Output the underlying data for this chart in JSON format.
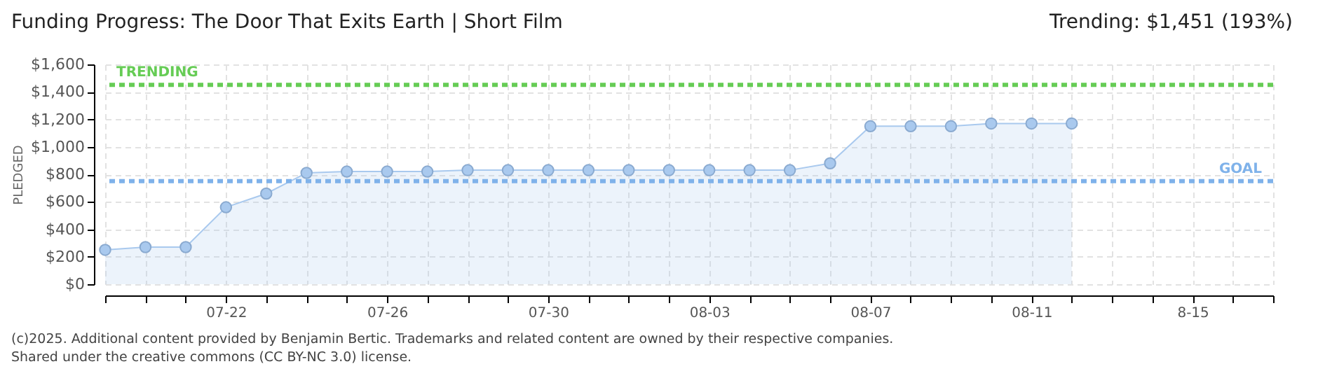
{
  "chart_data": {
    "type": "area",
    "title": "Funding Progress: The Door That Exits Earth | Short Film",
    "subtitle": "Trending: $1,451 (193%)",
    "ylabel": "PLEDGED",
    "x": [
      "--07-19",
      "--07-20",
      "--07-21",
      "--07-22",
      "--07-23",
      "--07-24",
      "--07-25",
      "--07-26",
      "--07-27",
      "--07-28",
      "--07-29",
      "--07-30",
      "--07-31",
      "--08-01",
      "--08-02",
      "--08-03",
      "--08-04",
      "--08-05",
      "--08-06",
      "--08-07",
      "--08-08",
      "--08-09",
      "--08-10",
      "--08-11",
      "--08-12"
    ],
    "series": [
      {
        "color": "#a9c9ee",
        "values": [
          250,
          270,
          270,
          560,
          660,
          810,
          820,
          820,
          820,
          830,
          830,
          830,
          830,
          830,
          830,
          830,
          830,
          830,
          880,
          1150,
          1150,
          1150,
          1170,
          1170,
          1170
        ]
      }
    ],
    "xlim": [
      "--07-19",
      "--08-17"
    ],
    "xticks": [
      {
        "value": "--07-19",
        "label": null
      },
      {
        "value": "--07-20",
        "label": null
      },
      {
        "value": "--07-21",
        "label": null
      },
      {
        "value": "--07-22",
        "label": "07-22"
      },
      {
        "value": "--07-23",
        "label": null
      },
      {
        "value": "--07-24",
        "label": null
      },
      {
        "value": "--07-25",
        "label": null
      },
      {
        "value": "--07-26",
        "label": "07-26"
      },
      {
        "value": "--07-27",
        "label": null
      },
      {
        "value": "--07-28",
        "label": null
      },
      {
        "value": "--07-29",
        "label": null
      },
      {
        "value": "--07-30",
        "label": "07-30"
      },
      {
        "value": "--07-31",
        "label": null
      },
      {
        "value": "--08-01",
        "label": null
      },
      {
        "value": "--08-02",
        "label": null
      },
      {
        "value": "--08-03",
        "label": "08-03"
      },
      {
        "value": "--08-04",
        "label": null
      },
      {
        "value": "--08-05",
        "label": null
      },
      {
        "value": "--08-06",
        "label": null
      },
      {
        "value": "--08-07",
        "label": "08-07"
      },
      {
        "value": "--08-08",
        "label": null
      },
      {
        "value": "--08-09",
        "label": null
      },
      {
        "value": "--08-10",
        "label": null
      },
      {
        "value": "--08-11",
        "label": "08-11"
      },
      {
        "value": "--08-12",
        "label": null
      },
      {
        "value": "--08-13",
        "label": null
      },
      {
        "value": "--08-14",
        "label": null
      },
      {
        "value": "--08-15",
        "label": "8-15"
      },
      {
        "value": "--08-16",
        "label": null
      },
      {
        "value": "--08-17",
        "label": null
      }
    ],
    "ylim": [
      0,
      1600
    ],
    "yticks": [
      {
        "value": 0,
        "label": "$0"
      },
      {
        "value": 200,
        "label": "$200"
      },
      {
        "value": 400,
        "label": "$400"
      },
      {
        "value": 600,
        "label": "$600"
      },
      {
        "value": 800,
        "label": "$800"
      },
      {
        "value": 1000,
        "label": "$1,000"
      },
      {
        "value": 1200,
        "label": "$1,200"
      },
      {
        "value": 1400,
        "label": "$1,400"
      },
      {
        "value": 1600,
        "label": "$1,600"
      }
    ],
    "ref_lines": [
      {
        "axis": "y",
        "value": 1451,
        "label": "TRENDING",
        "color": "#66cc55",
        "line_style": "dashed"
      },
      {
        "axis": "y",
        "value": 750,
        "label": "GOAL",
        "color": "#7fb2ea",
        "line_style": "dashed"
      }
    ],
    "grid": true,
    "marker": "circle",
    "line_style": "solid",
    "annotations": [
      "(c)2025. Additional content provided by Benjamin Bertic. Trademarks and related content are owned by their respective companies.",
      "Shared under the creative commons (CC BY-NC 3.0) license."
    ]
  }
}
